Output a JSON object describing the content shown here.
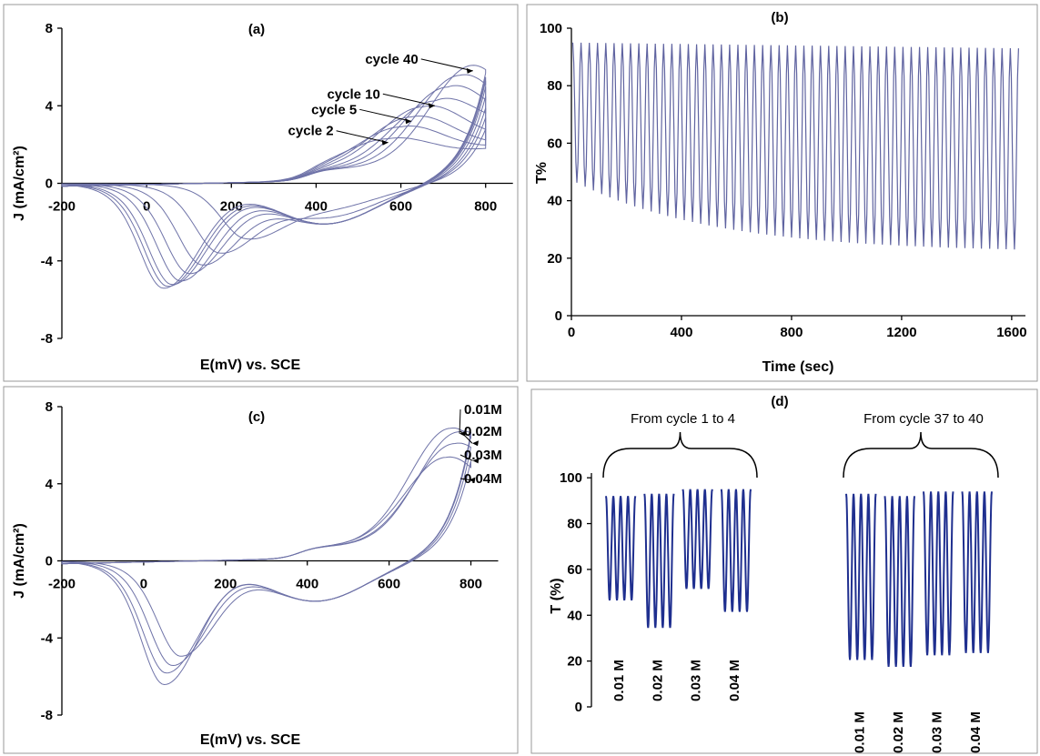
{
  "chart_data": [
    {
      "type": "line",
      "panel_label": "(a)",
      "xlabel": "E(mV) vs. SCE",
      "ylabel": "J (mA/cm²)",
      "xlim": [
        -200,
        850
      ],
      "ylim": [
        -8,
        8
      ],
      "xticks": [
        -200,
        0,
        200,
        400,
        600,
        800
      ],
      "yticks": [
        -8,
        -4,
        0,
        4,
        8
      ],
      "annotations": [
        {
          "text": "cycle 40",
          "x": 770,
          "y": 5.8
        },
        {
          "text": "cycle 10",
          "x": 680,
          "y": 4.0
        },
        {
          "text": "cycle 5",
          "x": 625,
          "y": 3.2
        },
        {
          "text": "cycle 2",
          "x": 570,
          "y": 2.1
        }
      ],
      "series": [
        {
          "anodic_peak": [
            570,
            2.1
          ],
          "cathodic_peak": [
            230,
            -2.4
          ],
          "max_j": 2.9
        },
        {
          "anodic_peak": [
            600,
            2.7
          ],
          "cathodic_peak": [
            170,
            -3.3
          ],
          "max_j": 3.5
        },
        {
          "anodic_peak": [
            625,
            3.2
          ],
          "cathodic_peak": [
            130,
            -4.0
          ],
          "max_j": 4.0
        },
        {
          "anodic_peak": [
            650,
            3.7
          ],
          "cathodic_peak": [
            100,
            -4.5
          ],
          "max_j": 4.6
        },
        {
          "anodic_peak": [
            680,
            4.0
          ],
          "cathodic_peak": [
            80,
            -4.9
          ],
          "max_j": 5.1
        },
        {
          "anodic_peak": [
            710,
            4.7
          ],
          "cathodic_peak": [
            60,
            -5.1
          ],
          "max_j": 5.4
        },
        {
          "anodic_peak": [
            740,
            5.3
          ],
          "cathodic_peak": [
            50,
            -5.2
          ],
          "max_j": 5.6
        },
        {
          "anodic_peak": [
            770,
            5.8
          ],
          "cathodic_peak": [
            40,
            -5.3
          ],
          "max_j": 5.8
        }
      ]
    },
    {
      "type": "line",
      "panel_label": "(b)",
      "xlabel": "Time (sec)",
      "ylabel": "T%",
      "xlim": [
        0,
        1650
      ],
      "ylim": [
        0,
        100
      ],
      "xticks": [
        0,
        400,
        800,
        1200,
        1600
      ],
      "yticks": [
        0,
        20,
        40,
        60,
        80,
        100
      ],
      "series": [
        {
          "period_sec": 30,
          "cycles": 54,
          "t_max_start": 95,
          "t_max_end": 93,
          "t_min_start": 47,
          "t_min_end": 22
        }
      ]
    },
    {
      "type": "line",
      "panel_label": "(c)",
      "xlabel": "E(mV) vs. SCE",
      "ylabel": "J (mA/cm²)",
      "xlim": [
        -200,
        850
      ],
      "ylim": [
        -8,
        8
      ],
      "xticks": [
        -200,
        0,
        200,
        400,
        600,
        800
      ],
      "yticks": [
        -8,
        -4,
        0,
        4,
        8
      ],
      "series": [
        {
          "name": "0.01M",
          "color": "#1f2fd8",
          "anodic_peak": [
            750,
            6.6
          ],
          "cathodic_peak": [
            50,
            -6.3
          ]
        },
        {
          "name": "0.02M",
          "color": "#e0201a",
          "anodic_peak": [
            770,
            6.4
          ],
          "cathodic_peak": [
            55,
            -5.7
          ]
        },
        {
          "name": "0.03M",
          "color": "#3aa860",
          "anodic_peak": [
            760,
            5.8
          ],
          "cathodic_peak": [
            70,
            -5.3
          ]
        },
        {
          "name": "0.04M",
          "color": "#9b3b1e",
          "anodic_peak": [
            740,
            5.1
          ],
          "cathodic_peak": [
            90,
            -4.8
          ]
        }
      ]
    },
    {
      "type": "line",
      "panel_label": "(d)",
      "ylabel": "T (%)",
      "ylim": [
        0,
        110
      ],
      "yticks": [
        0,
        20,
        40,
        60,
        80,
        100
      ],
      "groups": [
        {
          "title": "From cycle 1 to 4",
          "concentrations": [
            {
              "label": "0.01 M",
              "t_max": 92,
              "t_min": 45
            },
            {
              "label": "0.02 M",
              "t_max": 93,
              "t_min": 33
            },
            {
              "label": "0.03 M",
              "t_max": 95,
              "t_min": 50
            },
            {
              "label": "0.04 M",
              "t_max": 95,
              "t_min": 40
            }
          ]
        },
        {
          "title": "From cycle 37 to 40",
          "concentrations": [
            {
              "label": "0.01 M",
              "t_max": 93,
              "t_min": 19
            },
            {
              "label": "0.02 M",
              "t_max": 92,
              "t_min": 16
            },
            {
              "label": "0.03 M",
              "t_max": 94,
              "t_min": 21
            },
            {
              "label": "0.04 M",
              "t_max": 94,
              "t_min": 22
            }
          ]
        }
      ]
    }
  ]
}
